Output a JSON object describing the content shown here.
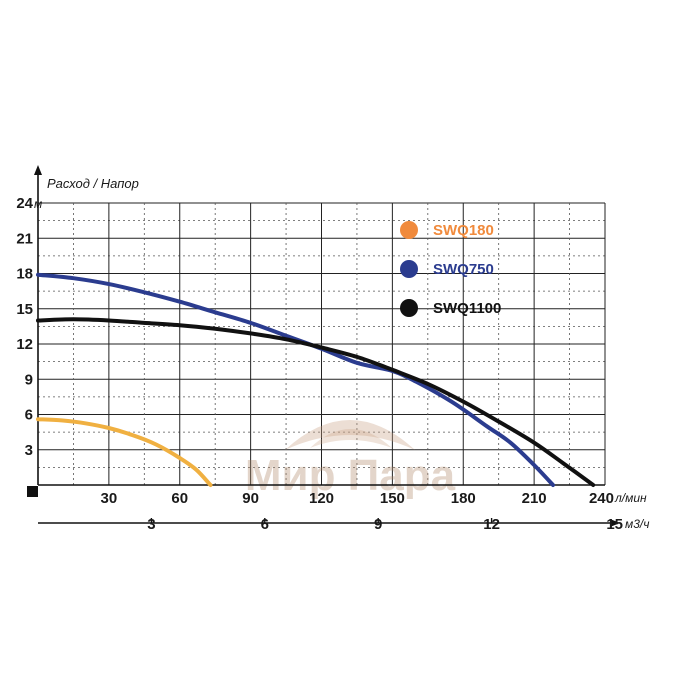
{
  "chart_data": {
    "type": "line",
    "title": "Расход / Напор",
    "y_axis": {
      "unit": "м",
      "ticks": [
        "3",
        "6",
        "9",
        "12",
        "15",
        "18",
        "21",
        "24"
      ],
      "range": [
        0,
        24
      ]
    },
    "x_axis": {
      "unit": "л/мин",
      "ticks": [
        "30",
        "60",
        "90",
        "120",
        "150",
        "180",
        "210",
        "240"
      ],
      "range": [
        0,
        240
      ]
    },
    "x_axis_secondary": {
      "unit": "м3/ч",
      "ticks": [
        "3",
        "6",
        "9",
        "12",
        "15"
      ],
      "range": [
        0,
        15
      ]
    },
    "grid": true,
    "legend_position": "top-right",
    "series": [
      {
        "name": "SWQ180",
        "color": "#f0b041",
        "legend_color": "#f08a3c",
        "points": [
          [
            0,
            5.6
          ],
          [
            10,
            5.5
          ],
          [
            20,
            5.25
          ],
          [
            30,
            4.85
          ],
          [
            40,
            4.25
          ],
          [
            50,
            3.45
          ],
          [
            60,
            2.3
          ],
          [
            67,
            1.3
          ],
          [
            73,
            0
          ]
        ]
      },
      {
        "name": "SWQ750",
        "color": "#2b3c8f",
        "legend_color": "#2b3c8f",
        "points": [
          [
            0,
            17.9
          ],
          [
            15,
            17.6
          ],
          [
            30,
            17.1
          ],
          [
            45,
            16.4
          ],
          [
            60,
            15.6
          ],
          [
            75,
            14.7
          ],
          [
            90,
            13.8
          ],
          [
            105,
            12.7
          ],
          [
            120,
            11.6
          ],
          [
            135,
            10.4
          ],
          [
            150,
            9.7
          ],
          [
            160,
            8.8
          ],
          [
            175,
            7.1
          ],
          [
            190,
            5.0
          ],
          [
            200,
            3.6
          ],
          [
            210,
            1.7
          ],
          [
            218,
            0
          ]
        ]
      },
      {
        "name": "SWQ1100",
        "color": "#111111",
        "legend_color": "#111111",
        "points": [
          [
            0,
            14.0
          ],
          [
            15,
            14.1
          ],
          [
            30,
            14.0
          ],
          [
            45,
            13.8
          ],
          [
            60,
            13.6
          ],
          [
            75,
            13.3
          ],
          [
            90,
            12.9
          ],
          [
            105,
            12.4
          ],
          [
            120,
            11.7
          ],
          [
            135,
            10.9
          ],
          [
            150,
            9.8
          ],
          [
            165,
            8.6
          ],
          [
            180,
            7.1
          ],
          [
            195,
            5.4
          ],
          [
            210,
            3.6
          ],
          [
            222,
            1.9
          ],
          [
            235,
            0
          ]
        ]
      }
    ]
  },
  "watermark": "Мир Пара"
}
